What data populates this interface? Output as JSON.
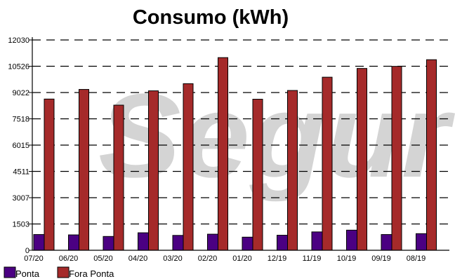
{
  "chart_data": {
    "type": "bar",
    "title": "Consumo (kWh)",
    "categories": [
      "07/20",
      "06/20",
      "05/20",
      "04/20",
      "03/20",
      "02/20",
      "01/20",
      "12/19",
      "11/19",
      "10/19",
      "09/19",
      "08/19"
    ],
    "series": [
      {
        "name": "Ponta",
        "color": "#4b0082",
        "values": [
          900,
          880,
          790,
          1000,
          850,
          920,
          750,
          860,
          1050,
          1150,
          900,
          950
        ]
      },
      {
        "name": "Fora Ponta",
        "color": "#a52a2a",
        "values": [
          8650,
          9200,
          8300,
          9120,
          9530,
          11020,
          8640,
          9140,
          9900,
          10400,
          10520,
          10900
        ]
      }
    ],
    "ylim": [
      0,
      12030
    ],
    "yticks": [
      "0",
      "1503",
      "3007",
      "4511",
      "6015",
      "7518",
      "9022",
      "10526",
      "12030"
    ],
    "grid": true,
    "legend_position": "bottom-left",
    "watermark": "Segur"
  }
}
